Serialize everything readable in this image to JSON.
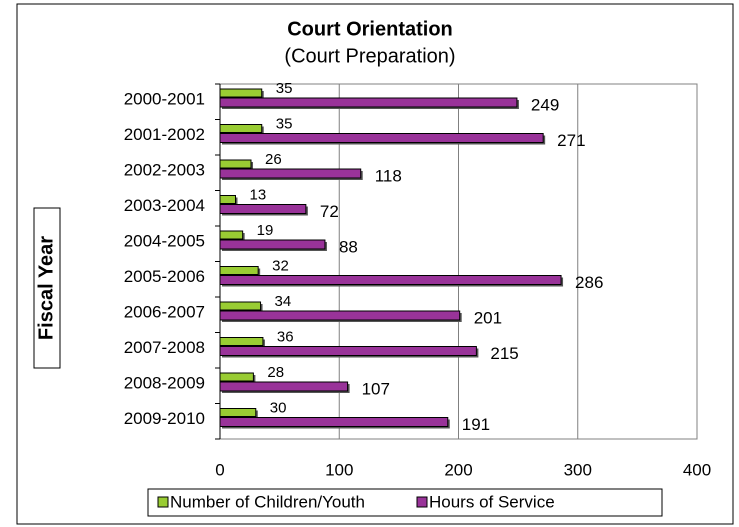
{
  "chart_data": {
    "type": "bar",
    "orientation": "horizontal",
    "title": "Court Orientation",
    "subtitle": "(Court Preparation)",
    "y_label": "Fiscal Year",
    "categories": [
      "2000-2001",
      "2001-2002",
      "2002-2003",
      "2003-2004",
      "2004-2005",
      "2005-2006",
      "2006-2007",
      "2007-2008",
      "2008-2009",
      "2009-2010"
    ],
    "series": [
      {
        "name": "Number of Children/Youth",
        "color": "#99cc33",
        "values": [
          35,
          35,
          26,
          13,
          19,
          32,
          34,
          36,
          28,
          30
        ]
      },
      {
        "name": "Hours of Service",
        "color": "#993399",
        "values": [
          249,
          271,
          118,
          72,
          88,
          286,
          201,
          215,
          107,
          191
        ]
      }
    ],
    "xlim": [
      0,
      400
    ],
    "xticks": [
      0,
      100,
      200,
      300,
      400
    ],
    "grid": true,
    "legend": "bottom"
  }
}
